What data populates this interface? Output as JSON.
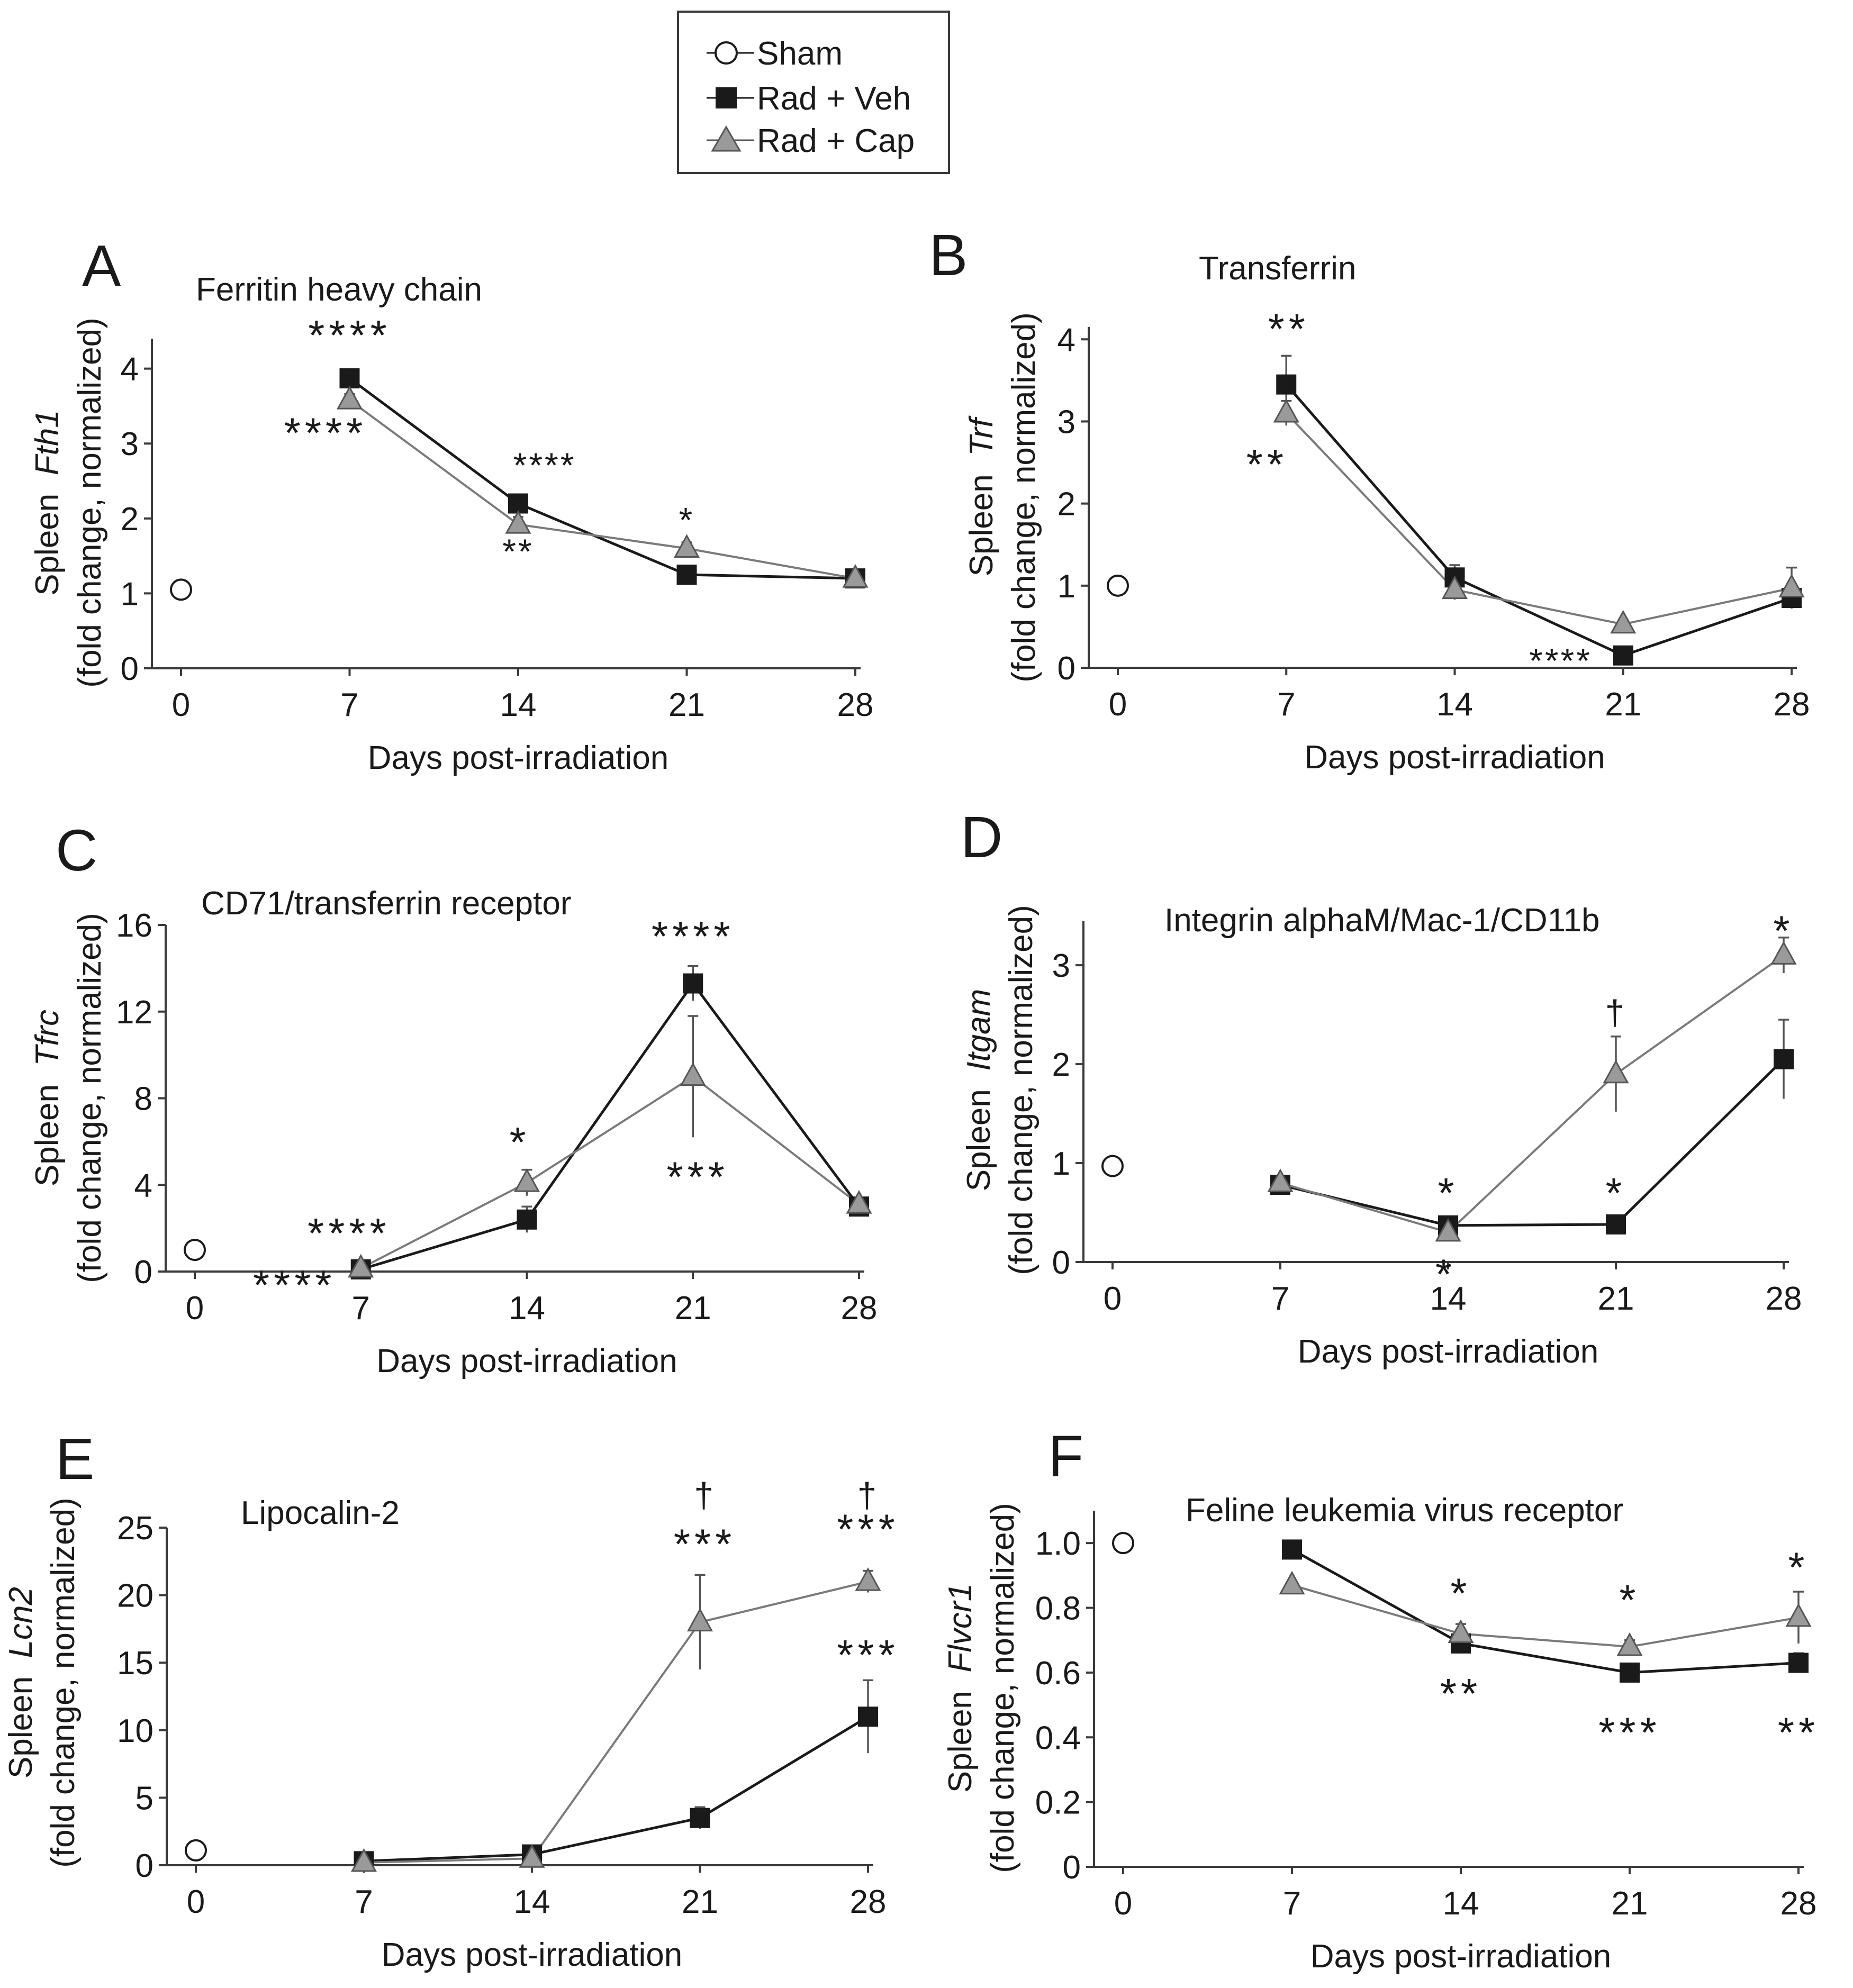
{
  "legend": {
    "items": [
      {
        "label": "Sham",
        "marker": "circle"
      },
      {
        "label": "Rad + Veh",
        "marker": "square"
      },
      {
        "label": "Rad + Cap",
        "marker": "triangle"
      }
    ]
  },
  "colors": {
    "veh": "#1a1a1a",
    "cap": "#9a9a9a",
    "cap_line": "#7a7a7a",
    "sham_fill": "#ffffff",
    "axis": "#3a3a3a"
  },
  "chart_data": [
    {
      "type": "line",
      "panel": "A",
      "title": "Ferritin heavy chain",
      "ylabel_prefix": "Spleen",
      "ylabel_gene": "Fth1",
      "ylabel_line2": "(fold change, normalized)",
      "xlabel": "Days post-irradiation",
      "xticks": [
        0,
        7,
        14,
        21,
        28
      ],
      "xticklabels": [
        "0",
        "7",
        "14",
        "21",
        "28"
      ],
      "yticks": [
        0,
        1,
        2,
        3,
        4
      ],
      "yticklabels": [
        "0",
        "1",
        "2",
        "3",
        "4"
      ],
      "ylim": [
        0,
        4.4
      ],
      "series": [
        {
          "name": "Sham",
          "x": [
            0
          ],
          "y": [
            1.05
          ],
          "err": [
            0
          ]
        },
        {
          "name": "Rad + Veh",
          "x": [
            7,
            14,
            21,
            28
          ],
          "y": [
            3.87,
            2.2,
            1.25,
            1.2
          ],
          "err": [
            0.05,
            0.05,
            0.05,
            0.05
          ]
        },
        {
          "name": "Rad + Cap",
          "x": [
            7,
            14,
            21,
            28
          ],
          "y": [
            3.58,
            1.92,
            1.6,
            1.2
          ],
          "err": [
            0.08,
            0.1,
            0.08,
            0.05
          ]
        }
      ],
      "annotations": [
        {
          "text": "****",
          "x": 7,
          "y": 4.25,
          "size": "sig"
        },
        {
          "text": "****",
          "x": 6,
          "y": 2.95,
          "size": "sig"
        },
        {
          "text": "****",
          "x": 15.1,
          "y": 2.55,
          "size": "sig-small"
        },
        {
          "text": "**",
          "x": 14,
          "y": 1.4,
          "size": "sig-small"
        },
        {
          "text": "*",
          "x": 21,
          "y": 1.82,
          "size": "sig-small"
        }
      ]
    },
    {
      "type": "line",
      "panel": "B",
      "title": "Transferrin",
      "ylabel_prefix": "Spleen",
      "ylabel_gene": "Trf",
      "ylabel_line2": "(fold change, normalized)",
      "xlabel": "Days post-irradiation",
      "xticks": [
        0,
        7,
        14,
        21,
        28
      ],
      "xticklabels": [
        "0",
        "7",
        "14",
        "21",
        "28"
      ],
      "yticks": [
        0,
        1,
        2,
        3,
        4
      ],
      "yticklabels": [
        "0",
        "1",
        "2",
        "3",
        "4"
      ],
      "ylim": [
        0,
        4.15
      ],
      "series": [
        {
          "name": "Sham",
          "x": [
            0
          ],
          "y": [
            1.0
          ],
          "err": [
            0
          ]
        },
        {
          "name": "Rad + Veh",
          "x": [
            7,
            14,
            21,
            28
          ],
          "y": [
            3.45,
            1.1,
            0.15,
            0.85
          ],
          "err": [
            0.35,
            0.15,
            0.05,
            0.08
          ]
        },
        {
          "name": "Rad + Cap",
          "x": [
            7,
            14,
            21,
            28
          ],
          "y": [
            3.1,
            0.95,
            0.53,
            0.97
          ],
          "err": [
            0.15,
            0.12,
            0.05,
            0.25
          ]
        }
      ],
      "annotations": [
        {
          "text": "**",
          "x": 7.1,
          "y": 3.95,
          "size": "sig"
        },
        {
          "text": "**",
          "x": 6.2,
          "y": 2.3,
          "size": "sig"
        },
        {
          "text": "****",
          "x": 18.4,
          "y": -0.06,
          "size": "sig-small"
        }
      ]
    },
    {
      "type": "line",
      "panel": "C",
      "title": "CD71/transferrin receptor",
      "ylabel_prefix": "Spleen",
      "ylabel_gene": "Tfrc",
      "ylabel_line2": "(fold change, normalized)",
      "xlabel": "Days post-irradiation",
      "xticks": [
        0,
        7,
        14,
        21,
        28
      ],
      "xticklabels": [
        "0",
        "7",
        "14",
        "21",
        "28"
      ],
      "yticks": [
        0,
        4,
        8,
        12,
        16
      ],
      "yticklabels": [
        "0",
        "4",
        "8",
        "12",
        "16"
      ],
      "ylim": [
        0,
        16
      ],
      "series": [
        {
          "name": "Sham",
          "x": [
            0
          ],
          "y": [
            1.0
          ],
          "err": [
            0
          ]
        },
        {
          "name": "Rad + Veh",
          "x": [
            7,
            14,
            21,
            28
          ],
          "y": [
            0.1,
            2.4,
            13.3,
            3.0
          ],
          "err": [
            0.05,
            0.6,
            0.8,
            0.2
          ]
        },
        {
          "name": "Rad + Cap",
          "x": [
            7,
            14,
            21,
            28
          ],
          "y": [
            0.15,
            4.1,
            9.0,
            3.1
          ],
          "err": [
            0.05,
            0.6,
            2.8,
            0.2
          ]
        }
      ],
      "annotations": [
        {
          "text": "****",
          "x": 21,
          "y": 14.8,
          "size": "sig"
        },
        {
          "text": "*",
          "x": 13.7,
          "y": 5.3,
          "size": "sig"
        },
        {
          "text": "***",
          "x": 21.2,
          "y": 3.7,
          "size": "sig"
        },
        {
          "text": "****",
          "x": 6.5,
          "y": 1.1,
          "size": "sig"
        },
        {
          "text": "****",
          "x": 4.2,
          "y": -1.3,
          "size": "sig"
        }
      ]
    },
    {
      "type": "line",
      "panel": "D",
      "title": "Integrin alphaM/Mac-1/CD11b",
      "ylabel_prefix": "Spleen",
      "ylabel_gene": "Itgam",
      "ylabel_line2": "(fold change, normalized)",
      "xlabel": "Days post-irradiation",
      "xticks": [
        0,
        7,
        14,
        21,
        28
      ],
      "xticklabels": [
        "0",
        "7",
        "14",
        "21",
        "28"
      ],
      "yticks": [
        0,
        1,
        2,
        3
      ],
      "yticklabels": [
        "0",
        "1",
        "2",
        "3"
      ],
      "ylim": [
        0,
        3.45
      ],
      "series": [
        {
          "name": "Sham",
          "x": [
            0
          ],
          "y": [
            0.97
          ],
          "err": [
            0
          ]
        },
        {
          "name": "Rad + Veh",
          "x": [
            7,
            14,
            21,
            28
          ],
          "y": [
            0.78,
            0.37,
            0.38,
            2.05
          ],
          "err": [
            0.03,
            0.05,
            0.08,
            0.4
          ]
        },
        {
          "name": "Rad + Cap",
          "x": [
            7,
            14,
            21,
            28
          ],
          "y": [
            0.8,
            0.3,
            1.9,
            3.1
          ],
          "err": [
            0.03,
            0.04,
            0.38,
            0.18
          ]
        }
      ],
      "annotations": [
        {
          "text": "*",
          "x": 28,
          "y": 3.2,
          "size": "sig"
        },
        {
          "text": "†",
          "x": 21,
          "y": 2.4,
          "size": "sig-small"
        },
        {
          "text": "*",
          "x": 14,
          "y": 0.55,
          "size": "sig"
        },
        {
          "text": "*",
          "x": 21,
          "y": 0.55,
          "size": "sig"
        },
        {
          "text": "*",
          "x": 13.9,
          "y": -0.27,
          "size": "sig"
        }
      ]
    },
    {
      "type": "line",
      "panel": "E",
      "title": "Lipocalin-2",
      "ylabel_prefix": "Spleen",
      "ylabel_gene": "Lcn2",
      "ylabel_line2": "(fold change, normalized)",
      "xlabel": "Days post-irradiation",
      "xticks": [
        0,
        7,
        14,
        21,
        28
      ],
      "xticklabels": [
        "0",
        "7",
        "14",
        "21",
        "28"
      ],
      "yticks": [
        0,
        5,
        10,
        15,
        20,
        25
      ],
      "yticklabels": [
        "0",
        "5",
        "10",
        "15",
        "20",
        "25"
      ],
      "ylim": [
        0,
        25
      ],
      "series": [
        {
          "name": "Sham",
          "x": [
            0
          ],
          "y": [
            1.1
          ],
          "err": [
            0
          ]
        },
        {
          "name": "Rad + Veh",
          "x": [
            7,
            14,
            21,
            28
          ],
          "y": [
            0.3,
            0.8,
            3.5,
            11.0
          ],
          "err": [
            0.05,
            0.1,
            0.8,
            2.7
          ]
        },
        {
          "name": "Rad + Cap",
          "x": [
            7,
            14,
            21,
            28
          ],
          "y": [
            0.2,
            0.5,
            18.0,
            21.0
          ],
          "err": [
            0.05,
            0.1,
            3.5,
            0.8
          ]
        }
      ],
      "annotations": [
        {
          "text": "†",
          "x": 21.2,
          "y": 26.5,
          "size": "sig-small"
        },
        {
          "text": "***",
          "x": 21.2,
          "y": 22.7,
          "size": "sig"
        },
        {
          "text": "†",
          "x": 28,
          "y": 26.5,
          "size": "sig-small"
        },
        {
          "text": "***",
          "x": 28,
          "y": 23.8,
          "size": "sig"
        },
        {
          "text": "***",
          "x": 28,
          "y": 14.5,
          "size": "sig"
        }
      ]
    },
    {
      "type": "line",
      "panel": "F",
      "title": "Feline leukemia virus receptor",
      "ylabel_prefix": "Spleen",
      "ylabel_gene": "Flvcr1",
      "ylabel_line2": "(fold change, normalized)",
      "xlabel": "Days post-irradiation",
      "xticks": [
        0,
        7,
        14,
        21,
        28
      ],
      "xticklabels": [
        "0",
        "7",
        "14",
        "21",
        "28"
      ],
      "yticks": [
        0,
        0.2,
        0.4,
        0.6,
        0.8,
        1.0
      ],
      "yticklabels": [
        "0",
        "0.2",
        "0.4",
        "0.6",
        "0.8",
        "1.0"
      ],
      "ylim": [
        0,
        1.1
      ],
      "series": [
        {
          "name": "Sham",
          "x": [
            0
          ],
          "y": [
            1.0
          ],
          "err": [
            0
          ]
        },
        {
          "name": "Rad + Veh",
          "x": [
            7,
            14,
            21,
            28
          ],
          "y": [
            0.98,
            0.69,
            0.6,
            0.63
          ],
          "err": [
            0.01,
            0.02,
            0.02,
            0.03
          ]
        },
        {
          "name": "Rad + Cap",
          "x": [
            7,
            14,
            21,
            28
          ],
          "y": [
            0.87,
            0.72,
            0.68,
            0.77
          ],
          "err": [
            0.01,
            0.03,
            0.02,
            0.08
          ]
        }
      ],
      "annotations": [
        {
          "text": "*",
          "x": 14,
          "y": 0.8,
          "size": "sig"
        },
        {
          "text": "*",
          "x": 21,
          "y": 0.78,
          "size": "sig"
        },
        {
          "text": "*",
          "x": 28,
          "y": 0.88,
          "size": "sig"
        },
        {
          "text": "**",
          "x": 14,
          "y": 0.49,
          "size": "sig"
        },
        {
          "text": "***",
          "x": 21,
          "y": 0.37,
          "size": "sig"
        },
        {
          "text": "**",
          "x": 28,
          "y": 0.37,
          "size": "sig"
        }
      ]
    }
  ]
}
